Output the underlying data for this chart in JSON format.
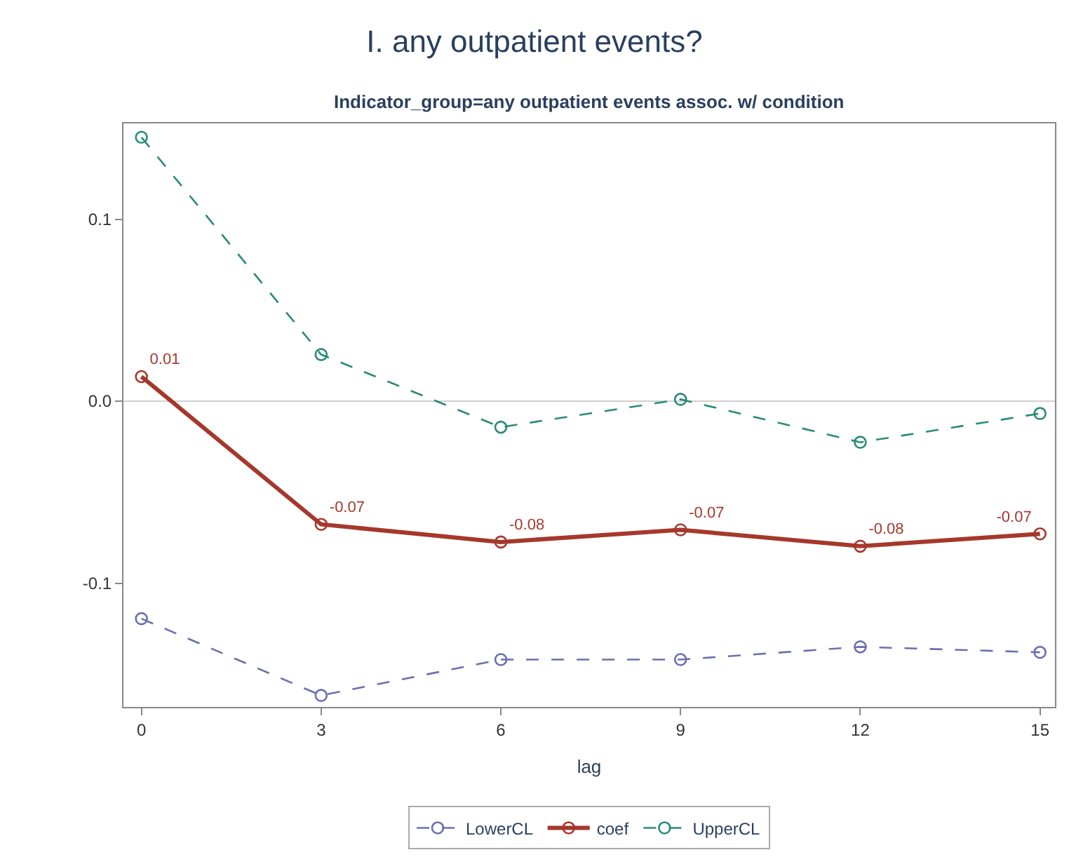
{
  "chart_data": {
    "type": "line",
    "title": "I. any outpatient events?",
    "subtitle": "Indicator_group=any outpatient events assoc. w/ condition",
    "xlabel": "lag",
    "x": [
      0,
      3,
      6,
      9,
      12,
      15
    ],
    "series": [
      {
        "name": "LowerCL",
        "color": "#6b6fb0",
        "line_style": "dashed",
        "values": [
          -0.1195,
          -0.1617,
          -0.142,
          -0.142,
          -0.135,
          -0.138
        ]
      },
      {
        "name": "coef",
        "color": "#a5382c",
        "line_style": "solid",
        "values": [
          0.0135,
          -0.0677,
          -0.0774,
          -0.0707,
          -0.0797,
          -0.0729
        ],
        "value_labels": [
          "0.01",
          "-0.07",
          "-0.08",
          "-0.07",
          "-0.08",
          "-0.07"
        ]
      },
      {
        "name": "UpperCL",
        "color": "#2a8a78",
        "line_style": "dashed",
        "values": [
          0.145,
          0.0256,
          -0.0143,
          0.001,
          -0.0226,
          -0.0068
        ]
      }
    ],
    "xlim": [
      -0.3,
      15.25
    ],
    "xticks": [
      0,
      3,
      6,
      9,
      12,
      15
    ],
    "ylim": [
      -0.168,
      0.1526
    ],
    "yticks": [
      {
        "value": -0.1,
        "label": "-0.1"
      },
      {
        "value": 0,
        "label": "0.0"
      },
      {
        "value": 0.1,
        "label": "0.1"
      }
    ],
    "ref_lines": [
      {
        "axis": "y",
        "value": 0,
        "color": "#d0d0d0"
      }
    ],
    "marker": "circle",
    "legend": "bottom",
    "grid": false
  }
}
